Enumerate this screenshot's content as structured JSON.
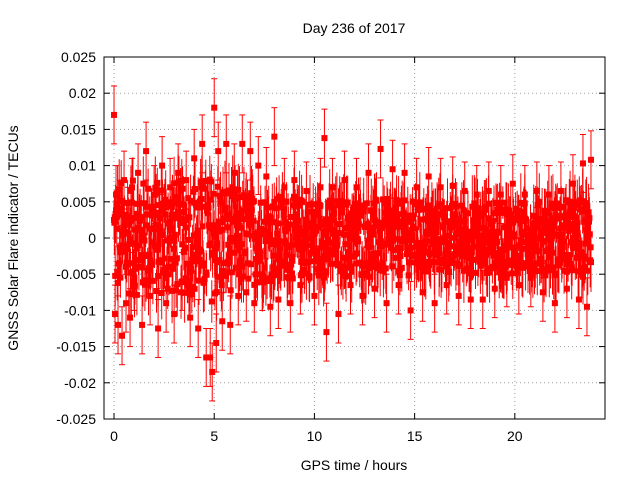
{
  "chart_data": {
    "type": "scatter",
    "title": "Day 236 of 2017",
    "xlabel": "GPS time / hours",
    "ylabel": "GNSS Solar Flare indicator / TECUs",
    "xlim": [
      -0.5,
      24.5
    ],
    "ylim": [
      -0.025,
      0.025
    ],
    "x_ticks": [
      0,
      5,
      10,
      15,
      20
    ],
    "x_tick_labels": [
      "0",
      "5",
      "10",
      "15",
      "20"
    ],
    "y_ticks": [
      -0.025,
      -0.02,
      -0.015,
      -0.01,
      -0.005,
      0,
      0.005,
      0.01,
      0.015,
      0.02,
      0.025
    ],
    "y_tick_labels": [
      "-0.025",
      "-0.02",
      "-0.015",
      "-0.01",
      "-0.005",
      "0",
      "0.005",
      "0.01",
      "0.015",
      "0.02",
      "0.025"
    ],
    "grid": true,
    "legend": "none",
    "marker": "filled-square",
    "color": "#ff0000",
    "error_bars": true,
    "series": [
      {
        "x": [
          0.0,
          0.05,
          0.1,
          0.2,
          0.3,
          0.4,
          0.5,
          0.6,
          0.7,
          0.8,
          0.9,
          1.0,
          1.2,
          1.4,
          1.6,
          1.8,
          2.0,
          2.2,
          2.4,
          2.6,
          2.8,
          3.0,
          3.2,
          3.4,
          3.6,
          3.8,
          4.0,
          4.2,
          4.4,
          4.6,
          4.8,
          4.9,
          5.0,
          5.1,
          5.2,
          5.4,
          5.6,
          5.8,
          6.0,
          6.2,
          6.4,
          6.6,
          6.8,
          7.0,
          7.2,
          7.4,
          7.6,
          7.8,
          8.0,
          8.2,
          8.5,
          8.8,
          9.0,
          9.3,
          9.6,
          10.0,
          10.3,
          10.5,
          10.6,
          10.9,
          11.2,
          11.5,
          11.8,
          12.1,
          12.4,
          12.7,
          13.0,
          13.3,
          13.6,
          13.9,
          14.2,
          14.5,
          14.8,
          15.1,
          15.4,
          15.7,
          16.0,
          16.3,
          16.6,
          16.9,
          17.2,
          17.5,
          17.8,
          18.1,
          18.4,
          18.7,
          19.0,
          19.3,
          19.6,
          19.9,
          20.2,
          20.5,
          20.8,
          21.1,
          21.4,
          21.7,
          22.0,
          22.3,
          22.6,
          22.9,
          23.2,
          23.4,
          23.6,
          23.8
        ],
        "y": [
          0.017,
          -0.0105,
          0.006,
          -0.012,
          0.004,
          -0.0135,
          0.008,
          -0.009,
          0.003,
          -0.011,
          0.007,
          -0.006,
          0.009,
          -0.012,
          0.012,
          -0.008,
          0.006,
          -0.0125,
          0.01,
          -0.009,
          0.007,
          -0.0105,
          0.009,
          -0.006,
          0.008,
          -0.011,
          0.011,
          -0.0125,
          0.013,
          -0.0165,
          -0.0165,
          -0.0185,
          0.018,
          -0.0145,
          0.012,
          -0.0115,
          0.013,
          -0.012,
          0.009,
          -0.008,
          0.013,
          -0.0075,
          0.012,
          -0.009,
          0.01,
          -0.006,
          0.0085,
          -0.0095,
          0.014,
          -0.0085,
          0.007,
          -0.009,
          0.008,
          -0.0065,
          0.0065,
          -0.008,
          0.007,
          0.0138,
          -0.013,
          0.007,
          -0.0105,
          0.008,
          -0.0065,
          0.007,
          -0.008,
          0.009,
          -0.007,
          0.0123,
          -0.009,
          0.0095,
          -0.0065,
          0.009,
          -0.01,
          0.007,
          -0.0075,
          0.0085,
          -0.009,
          0.007,
          -0.0065,
          0.0072,
          -0.008,
          0.0065,
          -0.0085,
          0.006,
          -0.0085,
          0.0065,
          -0.007,
          0.006,
          -0.0055,
          0.0075,
          -0.0065,
          0.006,
          -0.0055,
          0.0065,
          -0.0075,
          0.006,
          -0.009,
          0.0065,
          -0.007,
          0.0075,
          -0.0085,
          0.0103,
          -0.0095,
          0.0108
        ],
        "err": [
          0.004,
          0.004,
          0.004,
          0.004,
          0.004,
          0.004,
          0.004,
          0.004,
          0.004,
          0.004,
          0.004,
          0.004,
          0.004,
          0.004,
          0.004,
          0.004,
          0.004,
          0.004,
          0.004,
          0.004,
          0.004,
          0.004,
          0.004,
          0.004,
          0.004,
          0.004,
          0.004,
          0.004,
          0.004,
          0.004,
          0.004,
          0.004,
          0.004,
          0.004,
          0.004,
          0.004,
          0.004,
          0.004,
          0.004,
          0.004,
          0.004,
          0.004,
          0.004,
          0.004,
          0.004,
          0.004,
          0.004,
          0.004,
          0.004,
          0.004,
          0.004,
          0.004,
          0.004,
          0.004,
          0.004,
          0.004,
          0.004,
          0.004,
          0.004,
          0.004,
          0.004,
          0.004,
          0.004,
          0.004,
          0.004,
          0.004,
          0.004,
          0.004,
          0.004,
          0.004,
          0.004,
          0.004,
          0.004,
          0.004,
          0.004,
          0.004,
          0.004,
          0.004,
          0.004,
          0.004,
          0.004,
          0.004,
          0.004,
          0.004,
          0.004,
          0.004,
          0.004,
          0.004,
          0.004,
          0.004,
          0.004,
          0.004,
          0.004,
          0.004,
          0.004,
          0.004,
          0.004,
          0.004,
          0.004,
          0.004,
          0.004,
          0.004,
          0.004,
          0.004
        ]
      }
    ],
    "dense_band": {
      "step_hours": 0.02,
      "envelope": [
        [
          0,
          0.008
        ],
        [
          2,
          0.008
        ],
        [
          4,
          0.008
        ],
        [
          5,
          0.009
        ],
        [
          6,
          0.007
        ],
        [
          8,
          0.006
        ],
        [
          10,
          0.0055
        ],
        [
          13,
          0.0055
        ],
        [
          16,
          0.005
        ],
        [
          20,
          0.005
        ],
        [
          23.8,
          0.0055
        ]
      ]
    }
  }
}
